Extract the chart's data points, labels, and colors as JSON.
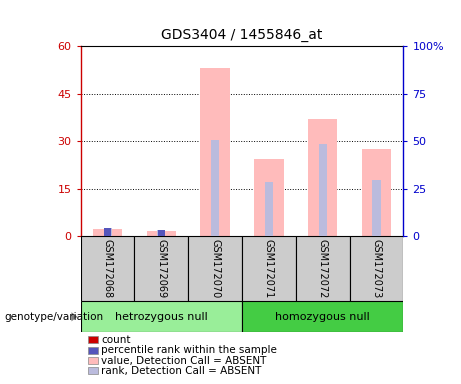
{
  "title": "GDS3404 / 1455846_at",
  "samples": [
    "GSM172068",
    "GSM172069",
    "GSM172070",
    "GSM172071",
    "GSM172072",
    "GSM172073"
  ],
  "groups": [
    "hetrozygous null",
    "homozygous null"
  ],
  "ylim_left": [
    0,
    60
  ],
  "ylim_right": [
    0,
    100
  ],
  "yticks_left": [
    0,
    15,
    30,
    45,
    60
  ],
  "yticks_right": [
    0,
    25,
    50,
    75,
    100
  ],
  "ytick_labels_left": [
    "0",
    "15",
    "30",
    "45",
    "60"
  ],
  "ytick_labels_right": [
    "0",
    "25",
    "50",
    "75",
    "100%"
  ],
  "absent_value_values": [
    2.2,
    1.5,
    53.0,
    24.5,
    37.0,
    27.5
  ],
  "absent_rank_values": [
    4.5,
    3.2,
    50.5,
    28.5,
    48.5,
    29.5
  ],
  "count_values": [
    2.0,
    1.2,
    0,
    0,
    0,
    0
  ],
  "rank_values": [
    4.5,
    3.0,
    0,
    0,
    0,
    0
  ],
  "count_color": "#cc0000",
  "rank_color": "#5555bb",
  "absent_value_color": "#ffbbbb",
  "absent_rank_color": "#bbbbdd",
  "bg_color": "#cccccc",
  "group1_color": "#99ee99",
  "group2_color": "#44cc44",
  "left_axis_color": "#cc0000",
  "right_axis_color": "#0000cc",
  "legend_items": [
    {
      "label": "count",
      "color": "#cc0000"
    },
    {
      "label": "percentile rank within the sample",
      "color": "#5555bb"
    },
    {
      "label": "value, Detection Call = ABSENT",
      "color": "#ffbbbb"
    },
    {
      "label": "rank, Detection Call = ABSENT",
      "color": "#bbbbdd"
    }
  ]
}
